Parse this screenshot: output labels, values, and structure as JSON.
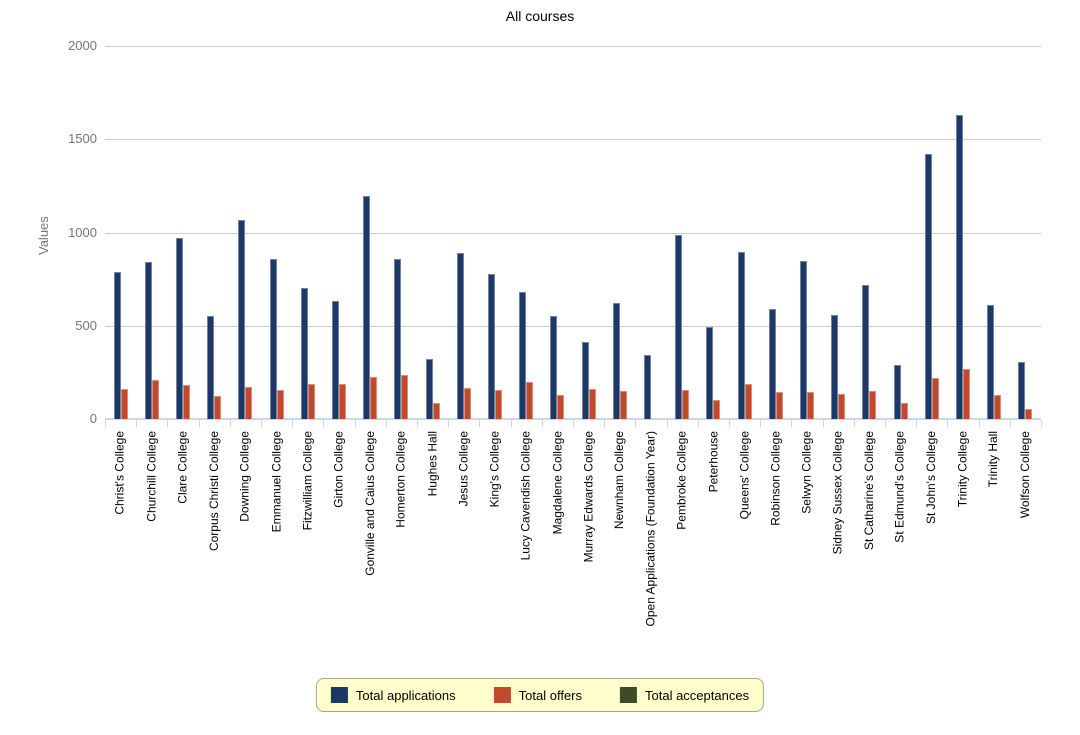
{
  "chart_data": {
    "type": "bar",
    "title": "All courses",
    "ylabel": "Values",
    "xlabel": "",
    "ylim": [
      0,
      2000
    ],
    "yticks": [
      0,
      500,
      1000,
      1500,
      2000
    ],
    "grid": "horizontal",
    "legend_position": "bottom",
    "categories": [
      "Christ's College",
      "Churchill College",
      "Clare College",
      "Corpus Christi College",
      "Downing College",
      "Emmanuel College",
      "Fitzwilliam College",
      "Girton College",
      "Gonville and Caius College",
      "Homerton College",
      "Hughes Hall",
      "Jesus College",
      "King's College",
      "Lucy Cavendish College",
      "Magdalene College",
      "Murray Edwards College",
      "Newnham College",
      "Open Applications (Foundation Year)",
      "Pembroke College",
      "Peterhouse",
      "Queens' College",
      "Robinson College",
      "Selwyn College",
      "Sidney Sussex College",
      "St Catharine's College",
      "St Edmund's College",
      "St John's College",
      "Trinity College",
      "Trinity Hall",
      "Wolfson College"
    ],
    "series": [
      {
        "name": "Total applications",
        "color": "#1B3866",
        "values": [
          790,
          840,
          970,
          550,
          1065,
          860,
          705,
          635,
          1195,
          860,
          320,
          890,
          775,
          680,
          550,
          415,
          620,
          345,
          985,
          495,
          895,
          590,
          845,
          560,
          720,
          290,
          1420,
          1630,
          610,
          305
        ]
      },
      {
        "name": "Total offers",
        "color": "#C04A2B",
        "values": [
          160,
          210,
          180,
          125,
          170,
          155,
          190,
          190,
          225,
          235,
          85,
          165,
          155,
          200,
          130,
          160,
          150,
          0,
          155,
          100,
          190,
          145,
          145,
          135,
          150,
          85,
          220,
          270,
          130,
          55
        ]
      },
      {
        "name": "Total acceptances",
        "color": "#3E4B25",
        "values": [
          0,
          0,
          0,
          0,
          0,
          0,
          0,
          0,
          0,
          0,
          0,
          0,
          0,
          0,
          0,
          0,
          0,
          0,
          0,
          0,
          0,
          0,
          0,
          0,
          0,
          0,
          0,
          0,
          0,
          0
        ]
      }
    ],
    "styles": {
      "grid_color": "#CCCCCC",
      "baseline_color": "#CCD7E8",
      "axis_text_color": "#757575",
      "category_text_color": "#000000",
      "legend_background": "#FFFFCC",
      "legend_border": "#A6A696"
    }
  }
}
